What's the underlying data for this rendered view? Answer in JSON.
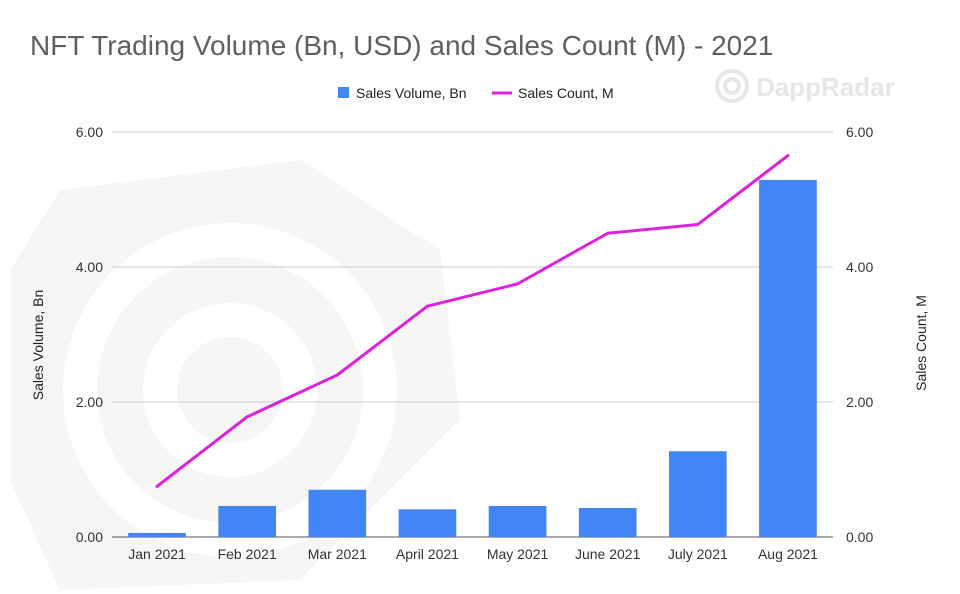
{
  "chart_data": {
    "type": "bar",
    "title": "NFT Trading Volume (Bn, USD) and Sales Count (M) - 2021",
    "categories": [
      "Jan 2021",
      "Feb 2021",
      "Mar 2021",
      "April 2021",
      "May 2021",
      "June 2021",
      "July 2021",
      "Aug 2021"
    ],
    "series": [
      {
        "name": "Sales Volume, Bn",
        "type": "bar",
        "axis": "left",
        "color": "#4285f4",
        "values": [
          0.06,
          0.46,
          0.7,
          0.41,
          0.46,
          0.43,
          1.27,
          5.29
        ]
      },
      {
        "name": "Sales Count, M",
        "type": "line",
        "axis": "right",
        "color": "#dd22dd",
        "values": [
          0.75,
          1.78,
          2.4,
          3.42,
          3.75,
          4.5,
          4.63,
          5.65
        ]
      }
    ],
    "ylabel": "Sales Volume, Bn",
    "y2label": "Sales Count, M",
    "ylim": [
      0,
      6
    ],
    "y2lim": [
      0,
      6
    ],
    "yticks": [
      "0.00",
      "2.00",
      "4.00",
      "6.00"
    ],
    "y2ticks": [
      "0.00",
      "2.00",
      "4.00",
      "6.00"
    ],
    "grid": true,
    "legend": "top-center"
  },
  "watermark": {
    "text": "DappRadar"
  }
}
